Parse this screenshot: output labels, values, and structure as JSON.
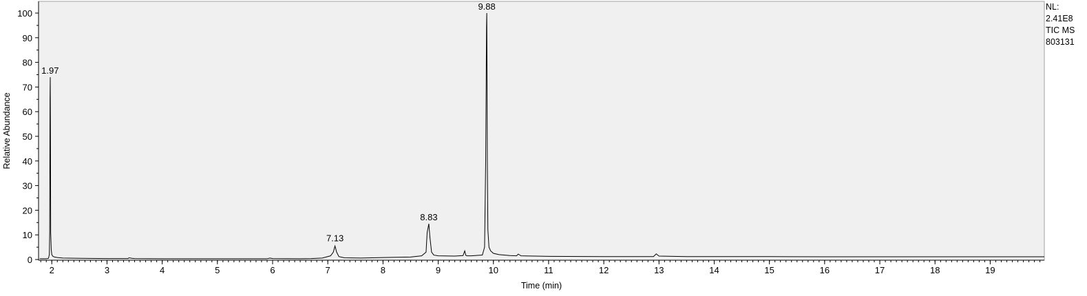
{
  "chart_data": {
    "type": "line",
    "title": "",
    "xlabel": "Time (min)",
    "ylabel": "Relative Abundance",
    "xlim": [
      1.76,
      19.98
    ],
    "ylim": [
      0,
      100
    ],
    "grid": false,
    "background": "#f0f0f0",
    "line_color": "#000000",
    "x_ticks": [
      "2",
      "3",
      "4",
      "5",
      "6",
      "7",
      "8",
      "9",
      "10",
      "11",
      "12",
      "13",
      "14",
      "15",
      "16",
      "17",
      "18",
      "19"
    ],
    "y_ticks": [
      "0",
      "10",
      "20",
      "30",
      "40",
      "50",
      "60",
      "70",
      "80",
      "90",
      "100"
    ],
    "info_lines": [
      "NL:",
      "2.41E8",
      "TIC  MS",
      "803131"
    ],
    "peak_labels": [
      {
        "x": 1.97,
        "y": 74,
        "text": "1.97"
      },
      {
        "x": 7.13,
        "y": 6,
        "text": "7.13"
      },
      {
        "x": 8.83,
        "y": 14.5,
        "text": "8.83"
      },
      {
        "x": 9.88,
        "y": 100,
        "text": "9.88"
      }
    ],
    "series": [
      {
        "x": [
          1.78,
          1.9,
          1.94,
          1.955,
          1.962,
          1.968,
          1.972,
          1.975,
          1.98,
          1.99,
          2.0,
          2.02,
          2.05,
          2.1,
          2.2,
          2.5,
          3.0,
          3.38,
          3.4,
          3.45,
          3.5,
          4.0,
          4.5,
          5.0,
          5.5,
          5.9,
          5.95,
          6.0,
          6.5,
          6.7,
          6.9,
          7.05,
          7.1,
          7.13,
          7.16,
          7.2,
          7.3,
          7.6,
          8.0,
          8.5,
          8.7,
          8.78,
          8.8,
          8.83,
          8.85,
          8.88,
          8.92,
          9.0,
          9.3,
          9.45,
          9.48,
          9.5,
          9.52,
          9.6,
          9.8,
          9.84,
          9.86,
          9.875,
          9.88,
          9.89,
          9.9,
          9.92,
          9.95,
          10.0,
          10.1,
          10.3,
          10.42,
          10.45,
          10.5,
          11.0,
          12.0,
          12.9,
          12.95,
          13.0,
          13.5,
          14.0,
          15.0,
          16.0,
          17.0,
          18.0,
          19.0,
          19.98
        ],
        "y": [
          0.3,
          0.3,
          0.5,
          2,
          11,
          65,
          74,
          55,
          11,
          4,
          2,
          1.3,
          1.0,
          0.8,
          0.6,
          0.5,
          0.4,
          0.4,
          0.7,
          0.5,
          0.4,
          0.3,
          0.3,
          0.3,
          0.3,
          0.3,
          0.6,
          0.4,
          0.3,
          0.4,
          0.6,
          1.5,
          3,
          5.5,
          3,
          1.2,
          0.7,
          0.6,
          0.8,
          1.0,
          1.5,
          3,
          11,
          14.5,
          9,
          3,
          1.8,
          1.5,
          1.4,
          1.6,
          3.5,
          1.7,
          1.5,
          1.5,
          1.8,
          5,
          40,
          94,
          100,
          40,
          12,
          5,
          3.5,
          2.5,
          2,
          1.6,
          1.5,
          2.2,
          1.5,
          1.3,
          1.2,
          1.2,
          2.3,
          1.4,
          1.2,
          1.2,
          1.2,
          1.1,
          1.1,
          1.1,
          1.1,
          1.1
        ]
      }
    ]
  }
}
